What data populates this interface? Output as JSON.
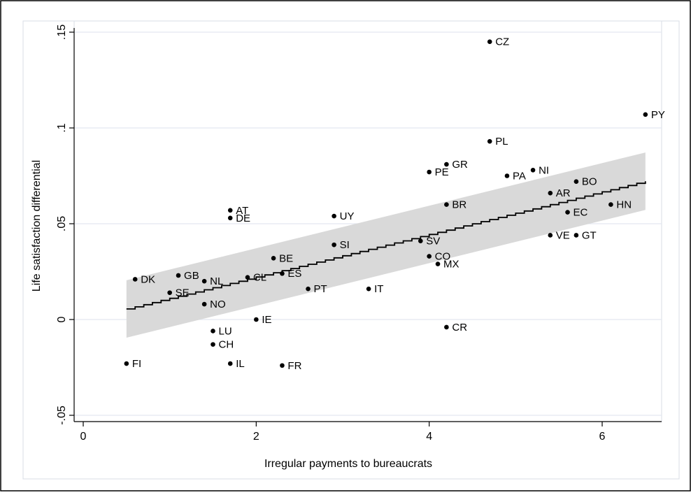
{
  "chart_data": {
    "type": "scatter",
    "xlabel": "Irregular payments to bureaucrats",
    "ylabel": "Life satisfaction differential",
    "xlim": [
      -0.1,
      6.65
    ],
    "ylim": [
      -0.058,
      0.152
    ],
    "xticks": [
      {
        "value": 0,
        "label": "0"
      },
      {
        "value": 2,
        "label": "2"
      },
      {
        "value": 4,
        "label": "4"
      },
      {
        "value": 6,
        "label": "6"
      }
    ],
    "yticks": [
      {
        "value": -0.05,
        "label": "-.05"
      },
      {
        "value": 0,
        "label": "0"
      },
      {
        "value": 0.05,
        "label": ".05"
      },
      {
        "value": 0.1,
        "label": ".1"
      },
      {
        "value": 0.15,
        "label": ".15"
      }
    ],
    "grid": "horizontal",
    "points": [
      {
        "label": "CZ",
        "x": 4.7,
        "y": 0.145
      },
      {
        "label": "PY",
        "x": 6.5,
        "y": 0.107
      },
      {
        "label": "PL",
        "x": 4.7,
        "y": 0.093
      },
      {
        "label": "GR",
        "x": 4.2,
        "y": 0.081
      },
      {
        "label": "PE",
        "x": 4.0,
        "y": 0.077
      },
      {
        "label": "NI",
        "x": 5.2,
        "y": 0.078
      },
      {
        "label": "PA",
        "x": 4.9,
        "y": 0.075
      },
      {
        "label": "BO",
        "x": 5.7,
        "y": 0.072
      },
      {
        "label": "AR",
        "x": 5.4,
        "y": 0.066
      },
      {
        "label": "BR",
        "x": 4.2,
        "y": 0.06
      },
      {
        "label": "HN",
        "x": 6.1,
        "y": 0.06
      },
      {
        "label": "EC",
        "x": 5.6,
        "y": 0.056
      },
      {
        "label": "AT",
        "x": 1.7,
        "y": 0.057
      },
      {
        "label": "DE",
        "x": 1.7,
        "y": 0.053
      },
      {
        "label": "UY",
        "x": 2.9,
        "y": 0.054
      },
      {
        "label": "VE",
        "x": 5.4,
        "y": 0.044
      },
      {
        "label": "GT",
        "x": 5.7,
        "y": 0.044
      },
      {
        "label": "SV",
        "x": 3.9,
        "y": 0.041
      },
      {
        "label": "SI",
        "x": 2.9,
        "y": 0.039
      },
      {
        "label": "CO",
        "x": 4.0,
        "y": 0.033
      },
      {
        "label": "MX",
        "x": 4.1,
        "y": 0.029
      },
      {
        "label": "BE",
        "x": 2.2,
        "y": 0.032
      },
      {
        "label": "ES",
        "x": 2.3,
        "y": 0.024
      },
      {
        "label": "CL",
        "x": 1.9,
        "y": 0.022
      },
      {
        "label": "GB",
        "x": 1.1,
        "y": 0.023
      },
      {
        "label": "NL",
        "x": 1.4,
        "y": 0.02
      },
      {
        "label": "DK",
        "x": 0.6,
        "y": 0.021
      },
      {
        "label": "SE",
        "x": 1.0,
        "y": 0.014
      },
      {
        "label": "PT",
        "x": 2.6,
        "y": 0.016
      },
      {
        "label": "IT",
        "x": 3.3,
        "y": 0.016
      },
      {
        "label": "NO",
        "x": 1.4,
        "y": 0.008
      },
      {
        "label": "IE",
        "x": 2.0,
        "y": 0.0
      },
      {
        "label": "CR",
        "x": 4.2,
        "y": -0.004
      },
      {
        "label": "LU",
        "x": 1.5,
        "y": -0.006
      },
      {
        "label": "CH",
        "x": 1.5,
        "y": -0.013
      },
      {
        "label": "FI",
        "x": 0.5,
        "y": -0.023
      },
      {
        "label": "IL",
        "x": 1.7,
        "y": -0.023
      },
      {
        "label": "FR",
        "x": 2.3,
        "y": -0.024
      }
    ],
    "fit_line": {
      "x": [
        0.5,
        6.5
      ],
      "y": [
        0.0055,
        0.0722
      ]
    },
    "confidence_band": {
      "x": [
        0.5,
        6.5
      ],
      "upper": [
        0.0205,
        0.0872
      ],
      "lower": [
        -0.0095,
        0.0572
      ]
    }
  }
}
